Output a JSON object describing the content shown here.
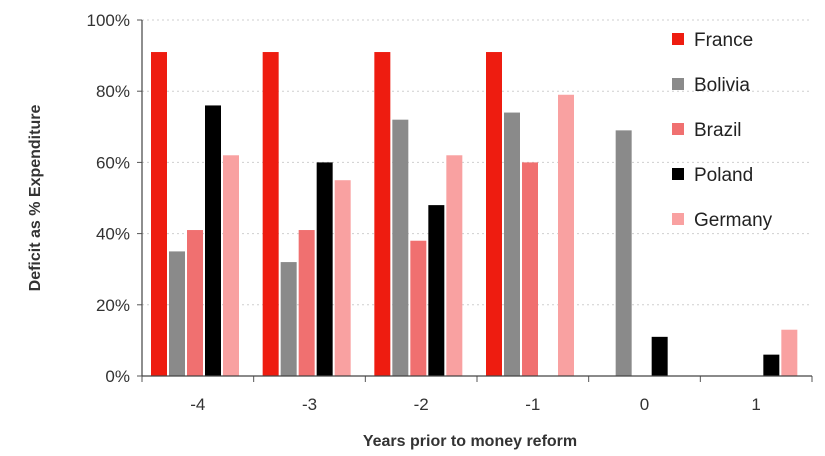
{
  "chart_data": {
    "type": "bar",
    "xlabel": "Years prior to money reform",
    "ylabel": "Deficit as % Expenditure",
    "categories": [
      "-4",
      "-3",
      "-2",
      "-1",
      "0",
      "1"
    ],
    "ylim": [
      0,
      100
    ],
    "yticks": [
      "0%",
      "20%",
      "40%",
      "60%",
      "80%",
      "100%"
    ],
    "grid": true,
    "legend_position": "right",
    "series": [
      {
        "name": "France",
        "color": "#ee1c10",
        "values": [
          91,
          91,
          91,
          91,
          null,
          null
        ]
      },
      {
        "name": "Bolivia",
        "color": "#8a8a8a",
        "values": [
          35,
          32,
          72,
          74,
          69,
          null
        ]
      },
      {
        "name": "Brazil",
        "color": "#f07070",
        "values": [
          41,
          41,
          38,
          60,
          null,
          null
        ]
      },
      {
        "name": "Poland",
        "color": "#000000",
        "values": [
          76,
          60,
          48,
          null,
          11,
          6
        ]
      },
      {
        "name": "Germany",
        "color": "#f9a1a1",
        "values": [
          62,
          55,
          62,
          79,
          null,
          13
        ]
      }
    ]
  }
}
